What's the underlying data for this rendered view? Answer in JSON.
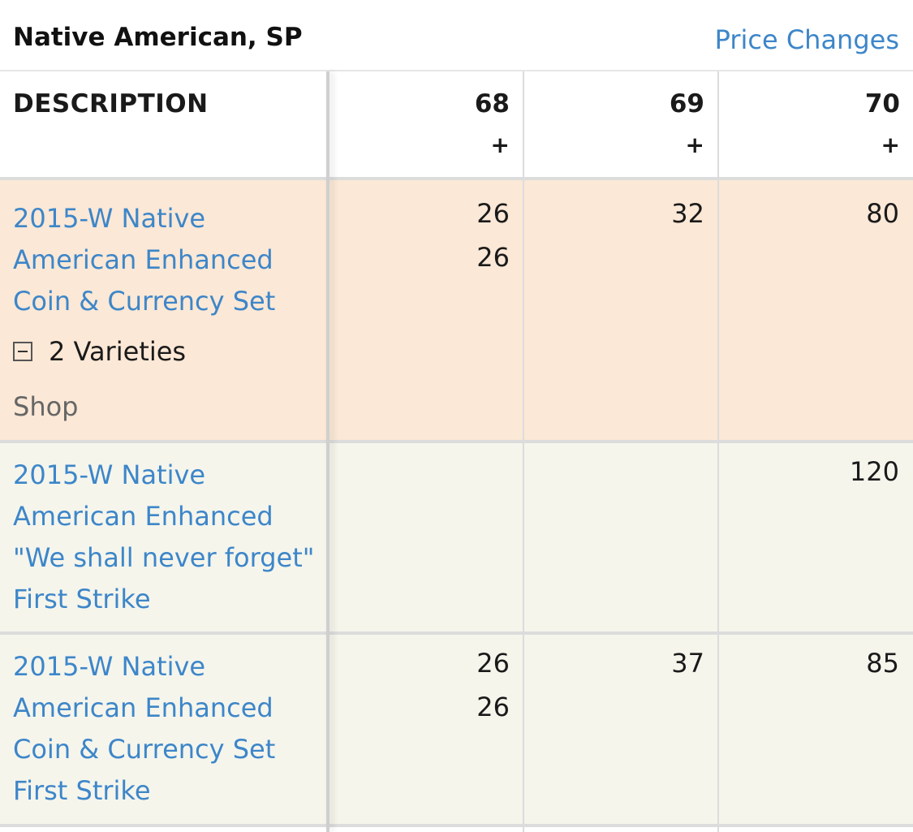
{
  "header": {
    "title": "Native American, SP",
    "price_changes_label": "Price Changes"
  },
  "columns": {
    "description": "DESCRIPTION",
    "grades": [
      {
        "grade": "68",
        "suffix": "+"
      },
      {
        "grade": "69",
        "suffix": "+"
      },
      {
        "grade": "70",
        "suffix": "+"
      }
    ]
  },
  "rows": [
    {
      "description": "2015-W Native American Enhanced Coin & Currency Set",
      "varieties_label": "2 Varieties",
      "shop_label": "Shop",
      "g68": [
        "26",
        "26"
      ],
      "g69": "32",
      "g70": "80"
    },
    {
      "description": "2015-W Native American Enhanced \"We shall never forget\" First Strike",
      "g68": "",
      "g69": "",
      "g70": "120"
    },
    {
      "description": "2015-W Native American Enhanced Coin & Currency Set First Strike",
      "g68": [
        "26",
        "26"
      ],
      "g69": "37",
      "g70": "85"
    }
  ],
  "colors": {
    "link": "#3d86c9",
    "highlight_row": "#fbe8d6",
    "plain_row": "#f5f5ec"
  }
}
